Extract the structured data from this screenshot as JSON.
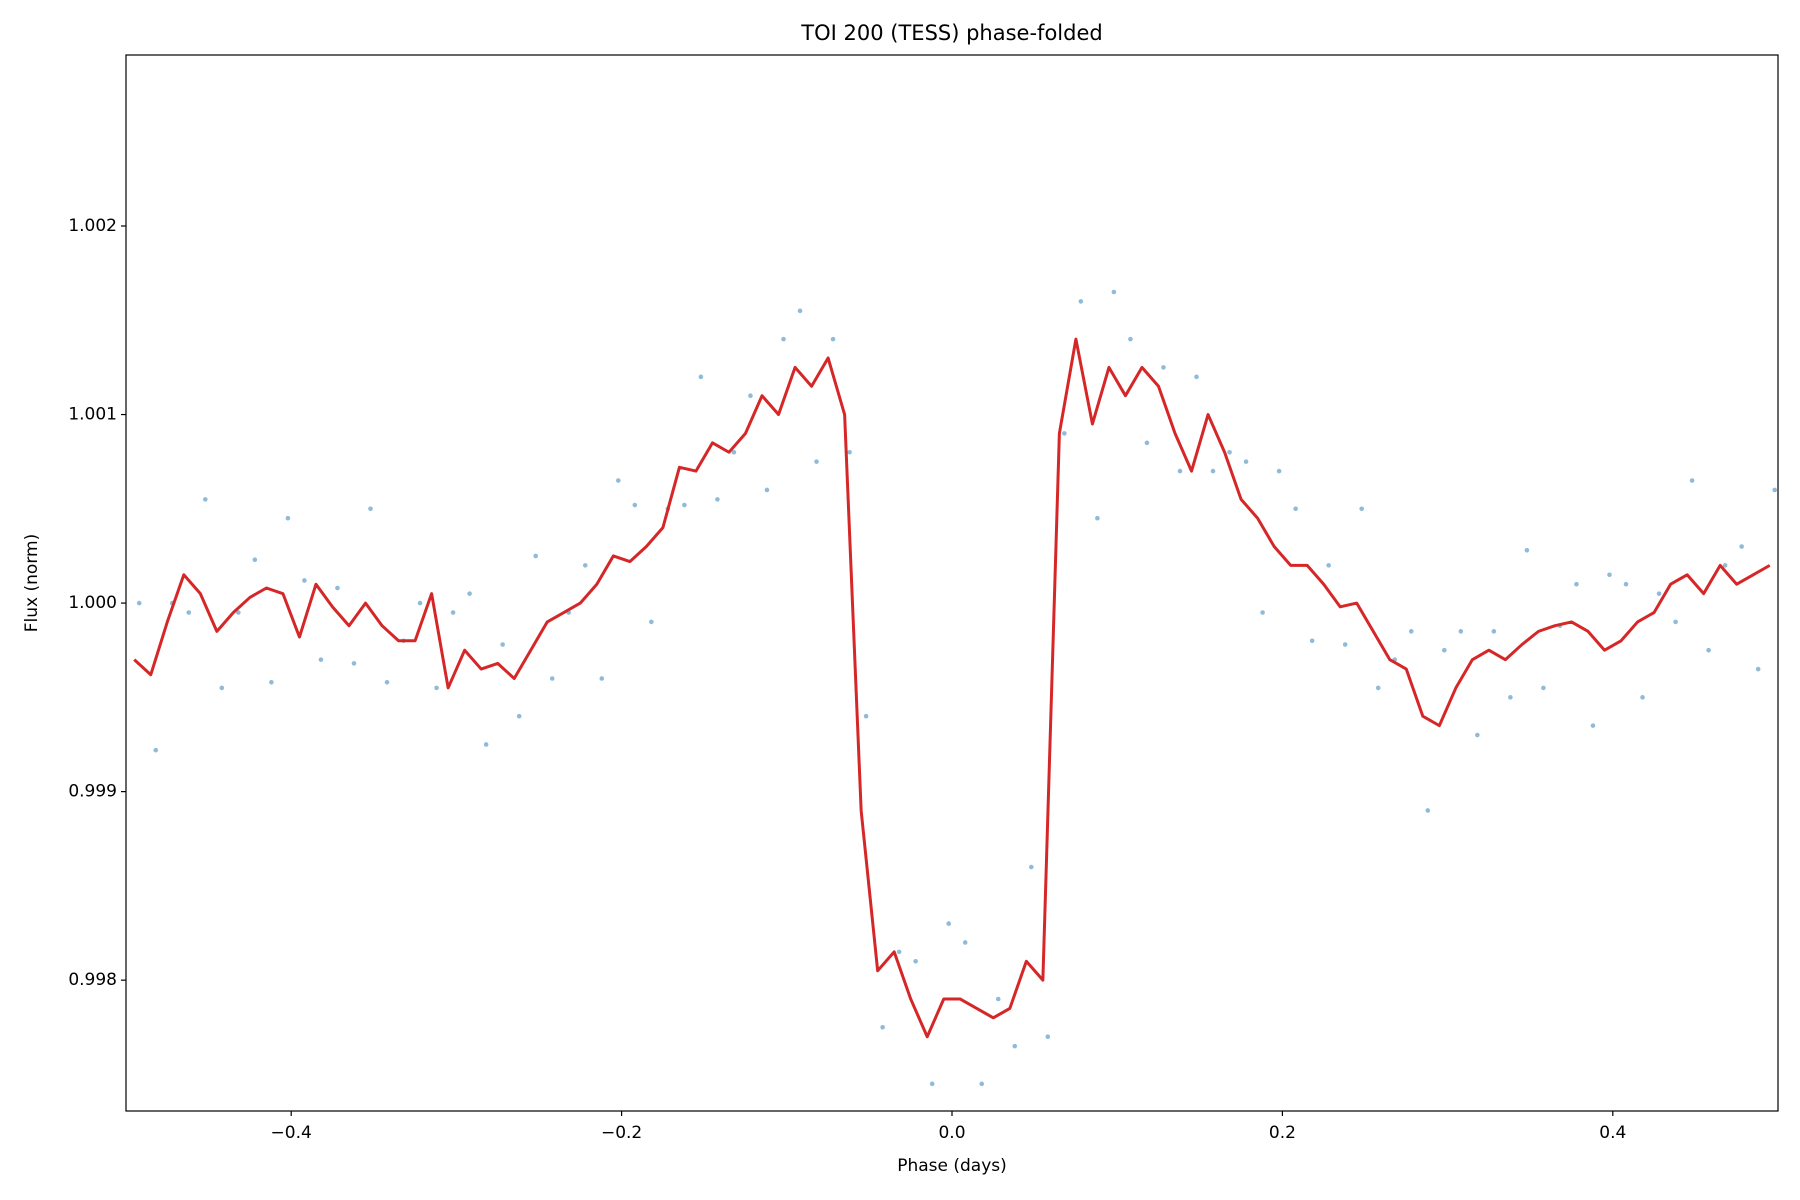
{
  "chart_data": {
    "type": "scatter",
    "title": "TOI 200 (TESS) phase-folded",
    "xlabel": "Phase (days)",
    "ylabel": "Flux (norm)",
    "xlim": [
      -0.5,
      0.5
    ],
    "ylim": [
      0.997306,
      1.002907
    ],
    "xticks": [
      {
        "value": -0.4,
        "label": "−0.4"
      },
      {
        "value": -0.2,
        "label": "−0.2"
      },
      {
        "value": 0,
        "label": "0.0"
      },
      0.2,
      0.4
    ],
    "yticks": [
      0.998,
      0.999,
      {
        "value": 1,
        "label": "1.000"
      },
      1.001,
      1.002
    ],
    "grid": false,
    "series": [
      {
        "type": "scatter",
        "color": "#1f77b4",
        "x": [
          -0.492,
          -0.482,
          -0.472,
          -0.462,
          -0.452,
          -0.442,
          -0.432,
          -0.422,
          -0.412,
          -0.402,
          -0.392,
          -0.382,
          -0.372,
          -0.362,
          -0.352,
          -0.342,
          -0.332,
          -0.322,
          -0.312,
          -0.302,
          -0.292,
          -0.282,
          -0.272,
          -0.262,
          -0.252,
          -0.242,
          -0.232,
          -0.222,
          -0.212,
          -0.202,
          -0.192,
          -0.182,
          -0.172,
          -0.162,
          -0.152,
          -0.142,
          -0.132,
          -0.122,
          -0.112,
          -0.102,
          -0.092,
          -0.082,
          -0.072,
          -0.062,
          -0.052,
          -0.042,
          -0.032,
          -0.022,
          -0.012,
          -0.002,
          0.008,
          0.018,
          0.028,
          0.038,
          0.048,
          0.058,
          0.068,
          0.078,
          0.088,
          0.098,
          0.108,
          0.118,
          0.128,
          0.138,
          0.148,
          0.158,
          0.168,
          0.178,
          0.188,
          0.198,
          0.208,
          0.218,
          0.228,
          0.238,
          0.248,
          0.258,
          0.268,
          0.278,
          0.288,
          0.298,
          0.308,
          0.318,
          0.328,
          0.338,
          0.348,
          0.358,
          0.368,
          0.378,
          0.388,
          0.398,
          0.408,
          0.418,
          0.428,
          0.438,
          0.448,
          0.458,
          0.468,
          0.478,
          0.488,
          0.498
        ],
        "values": [
          1.0,
          0.99922,
          1.0,
          0.99995,
          1.00055,
          0.99955,
          0.99995,
          1.00023,
          0.99958,
          1.00045,
          1.00012,
          0.9997,
          1.00008,
          0.99968,
          1.0005,
          0.99958,
          0.9998,
          1.0,
          0.99955,
          0.99995,
          1.00005,
          0.99925,
          0.99978,
          0.9994,
          1.00025,
          0.9996,
          0.99995,
          1.0002,
          0.9996,
          1.00065,
          1.00052,
          0.9999,
          1.0005,
          1.00052,
          1.0012,
          1.00055,
          1.0008,
          1.0011,
          1.0006,
          1.0014,
          1.00155,
          1.00075,
          1.0014,
          1.0008,
          0.9994,
          0.99775,
          0.99815,
          0.9981,
          0.99745,
          0.9983,
          0.9982,
          0.99745,
          0.9979,
          0.99765,
          0.9986,
          0.9977,
          1.0009,
          1.0016,
          1.00045,
          1.00165,
          1.0014,
          1.00085,
          1.00125,
          1.0007,
          1.0012,
          1.0007,
          1.0008,
          1.00075,
          0.99995,
          1.0007,
          1.0005,
          0.9998,
          1.0002,
          0.99978,
          1.0005,
          0.99955,
          0.9997,
          0.99985,
          0.9989,
          0.99975,
          0.99985,
          0.9993,
          0.99985,
          0.9995,
          1.00028,
          0.99955,
          0.99988,
          1.0001,
          0.99935,
          1.00015,
          1.0001,
          0.9995,
          1.00005,
          0.9999,
          1.00065,
          0.99975,
          1.0002,
          1.0003,
          0.99965,
          1.0006
        ]
      },
      {
        "type": "line",
        "color": "#d62728",
        "x": [
          -0.495,
          -0.485,
          -0.475,
          -0.465,
          -0.455,
          -0.445,
          -0.435,
          -0.425,
          -0.415,
          -0.405,
          -0.395,
          -0.385,
          -0.375,
          -0.365,
          -0.355,
          -0.345,
          -0.335,
          -0.325,
          -0.315,
          -0.305,
          -0.295,
          -0.285,
          -0.275,
          -0.265,
          -0.255,
          -0.245,
          -0.235,
          -0.225,
          -0.215,
          -0.205,
          -0.195,
          -0.185,
          -0.175,
          -0.165,
          -0.155,
          -0.145,
          -0.135,
          -0.125,
          -0.115,
          -0.105,
          -0.095,
          -0.085,
          -0.075,
          -0.065,
          -0.055,
          -0.045,
          -0.035,
          -0.025,
          -0.015,
          -0.005,
          0.005,
          0.015,
          0.025,
          0.035,
          0.045,
          0.055,
          0.065,
          0.075,
          0.085,
          0.095,
          0.105,
          0.115,
          0.125,
          0.135,
          0.145,
          0.155,
          0.165,
          0.175,
          0.185,
          0.195,
          0.205,
          0.215,
          0.225,
          0.235,
          0.245,
          0.255,
          0.265,
          0.275,
          0.285,
          0.295,
          0.305,
          0.315,
          0.325,
          0.335,
          0.345,
          0.355,
          0.365,
          0.375,
          0.385,
          0.395,
          0.405,
          0.415,
          0.425,
          0.435,
          0.445,
          0.455,
          0.465,
          0.475,
          0.485,
          0.495
        ],
        "values": [
          0.9997,
          0.99962,
          0.9999,
          1.00015,
          1.00005,
          0.99985,
          0.99995,
          1.00003,
          1.00008,
          1.00005,
          0.99982,
          1.0001,
          0.99998,
          0.99988,
          1.0,
          0.99988,
          0.9998,
          0.9998,
          1.00005,
          0.99955,
          0.99975,
          0.99965,
          0.99968,
          0.9996,
          0.99975,
          0.9999,
          0.99995,
          1.0,
          1.0001,
          1.00025,
          1.00022,
          1.0003,
          1.0004,
          1.00072,
          1.0007,
          1.00085,
          1.0008,
          1.0009,
          1.0011,
          1.001,
          1.00125,
          1.00115,
          1.0013,
          1.001,
          0.9989,
          0.99805,
          0.99815,
          0.9979,
          0.9977,
          0.9979,
          0.9979,
          0.99785,
          0.9978,
          0.99785,
          0.9981,
          0.998,
          1.0009,
          1.0014,
          1.00095,
          1.00125,
          1.0011,
          1.00125,
          1.00115,
          1.0009,
          1.0007,
          1.001,
          1.0008,
          1.00055,
          1.00045,
          1.0003,
          1.0002,
          1.0002,
          1.0001,
          0.99998,
          1.0,
          0.99985,
          0.9997,
          0.99965,
          0.9994,
          0.99935,
          0.99955,
          0.9997,
          0.99975,
          0.9997,
          0.99978,
          0.99985,
          0.99988,
          0.9999,
          0.99985,
          0.99975,
          0.9998,
          0.9999,
          0.99995,
          1.0001,
          1.00015,
          1.00005,
          1.0002,
          1.0001,
          1.00015,
          1.0002
        ]
      }
    ]
  }
}
